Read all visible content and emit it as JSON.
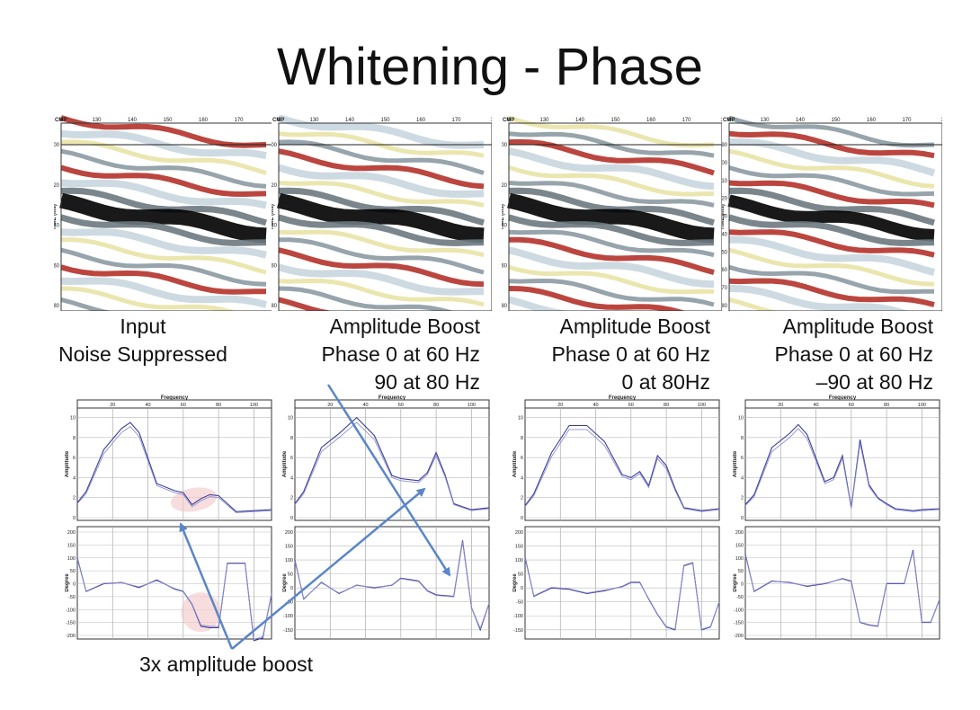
{
  "slide": {
    "title": "Whitening - Phase",
    "annotation": "3x amplitude boost"
  },
  "colors": {
    "trace": "#3a3d9a",
    "arrow": "#5b86c8",
    "highlight": "#f2c6c6",
    "seis_dark": "#000000",
    "seis_red": "#b4322a",
    "seis_light": "#c9d6df",
    "seis_yellow": "#e9e3a6"
  },
  "panels": [
    {
      "caption": [
        "Input",
        "Noise Suppressed"
      ],
      "seismic": {
        "cmp_label": "CMP",
        "time_label": "TIME (ms)",
        "cmp_ticks": [
          "0",
          "130",
          "140",
          "150",
          "160",
          "170",
          "1"
        ],
        "time_ticks": [
          "800",
          "820",
          "840",
          "860",
          "880"
        ]
      },
      "freq_label": "Frequency",
      "amp_label": "Amplitude",
      "phase_label": "Degree",
      "freq_ticks": [
        "20",
        "40",
        "60",
        "80",
        "100"
      ],
      "amp_ticks": [
        "10",
        "8",
        "6",
        "4",
        "2",
        "0"
      ],
      "phase_ticks": [
        "200",
        "150",
        "100",
        "50",
        "0",
        "-50",
        "-100",
        "-150",
        "-200"
      ]
    },
    {
      "caption": [
        "Amplitude  Boost",
        "Phase 0 at 60 Hz",
        "90 at 80 Hz"
      ],
      "seismic": {
        "cmp_label": "CMP",
        "time_label": "TIME (ms)",
        "cmp_ticks": [
          "0",
          "130",
          "140",
          "150",
          "160",
          "170",
          "1"
        ],
        "time_ticks": [
          "800",
          "820",
          "840",
          "860",
          "880"
        ]
      },
      "freq_label": "Frequency",
      "amp_label": "Amplitude",
      "phase_label": "Degree",
      "freq_ticks": [
        "20",
        "40",
        "60",
        "80",
        "100"
      ],
      "amp_ticks": [
        "10",
        "8",
        "6",
        "4",
        "2",
        "0"
      ],
      "phase_ticks": [
        "200",
        "150",
        "100",
        "50",
        "0",
        "-50",
        "-100",
        "-150"
      ]
    },
    {
      "caption": [
        "Amplitude Boost",
        "Phase 0 at 60 Hz",
        "0 at 80Hz"
      ],
      "seismic": {
        "cmp_label": "CMP",
        "time_label": "TIME (ms)",
        "cmp_ticks": [
          "0",
          "130",
          "140",
          "150",
          "160",
          "170",
          "1"
        ],
        "time_ticks": [
          "800",
          "820",
          "840",
          "860",
          "880"
        ]
      },
      "freq_label": "Frequency",
      "amp_label": "Amplitude",
      "phase_label": "Degree",
      "freq_ticks": [
        "20",
        "40",
        "60",
        "80",
        "100"
      ],
      "amp_ticks": [
        "10",
        "8",
        "6",
        "4",
        "2",
        "0"
      ],
      "phase_ticks": [
        "200",
        "150",
        "100",
        "50",
        "0",
        "-50",
        "-100",
        "-150"
      ]
    },
    {
      "caption": [
        "Amplitude Boost",
        "Phase 0 at 60 Hz",
        "–90 at 80 Hz"
      ],
      "seismic": {
        "cmp_label": "CMP",
        "time_label": "TIME (ms)",
        "cmp_ticks": [
          "0",
          "130",
          "140",
          "150",
          "160",
          "170",
          "1"
        ],
        "time_ticks": [
          "790",
          "800",
          "810",
          "820",
          "830",
          "840",
          "850",
          "860",
          "870",
          "880"
        ]
      },
      "freq_label": "Frequency",
      "amp_label": "Amplitude",
      "phase_label": "Degree",
      "freq_ticks": [
        "20",
        "40",
        "60",
        "80",
        "100"
      ],
      "amp_ticks": [
        "10",
        "8",
        "6",
        "4",
        "2",
        "0"
      ],
      "phase_ticks": [
        "200",
        "150",
        "100",
        "50",
        "0",
        "-50",
        "-100",
        "-150",
        "-200"
      ]
    }
  ],
  "chart_data": [
    {
      "type": "line",
      "panel": "Input / Noise Suppressed",
      "xlabel": "Frequency",
      "ylabel": "Amplitude",
      "xlim": [
        0,
        110
      ],
      "ylim": [
        0,
        10.5
      ],
      "x": [
        0,
        5,
        15,
        25,
        30,
        35,
        45,
        55,
        60,
        65,
        70,
        75,
        80,
        90,
        100,
        110
      ],
      "series": [
        {
          "values": [
            1.5,
            2.6,
            6.8,
            8.9,
            9.5,
            8.5,
            3.4,
            2.7,
            2.5,
            1.3,
            1.9,
            2.3,
            2.2,
            0.6,
            0.7,
            0.8
          ]
        },
        {
          "values": [
            1.4,
            2.4,
            6.4,
            8.5,
            9.1,
            8.1,
            3.2,
            2.5,
            2.3,
            1.1,
            1.7,
            2.1,
            2.0,
            0.5,
            0.6,
            0.7
          ]
        }
      ]
    },
    {
      "type": "line",
      "panel": "Input / Noise Suppressed",
      "xlabel": "Frequency",
      "ylabel": "Degree",
      "xlim": [
        0,
        110
      ],
      "ylim": [
        -200,
        200
      ],
      "x": [
        0,
        5,
        15,
        25,
        35,
        45,
        55,
        60,
        65,
        70,
        75,
        80,
        85,
        90,
        95,
        100,
        105,
        110
      ],
      "series": [
        {
          "values": [
            100,
            -30,
            0,
            5,
            -15,
            15,
            -20,
            -30,
            -80,
            -165,
            -170,
            -170,
            80,
            80,
            80,
            -220,
            -210,
            -40
          ]
        },
        {
          "values": [
            95,
            -28,
            2,
            4,
            -12,
            12,
            -18,
            -28,
            -78,
            -160,
            -165,
            -165,
            78,
            78,
            78,
            -215,
            -205,
            -40
          ]
        }
      ]
    },
    {
      "type": "line",
      "panel": "Phase 0 at 60 Hz, 90 at 80 Hz",
      "xlabel": "Frequency",
      "ylabel": "Amplitude",
      "xlim": [
        0,
        110
      ],
      "ylim": [
        0,
        10.5
      ],
      "x": [
        0,
        5,
        15,
        25,
        35,
        45,
        55,
        60,
        65,
        70,
        75,
        80,
        85,
        90,
        100,
        110
      ],
      "series": [
        {
          "values": [
            1.4,
            2.6,
            7.0,
            8.4,
            10.0,
            8.2,
            4.2,
            3.9,
            3.8,
            3.7,
            4.5,
            6.5,
            4.3,
            1.4,
            0.8,
            1.0
          ]
        },
        {
          "values": [
            1.3,
            2.4,
            6.6,
            8.0,
            9.5,
            7.8,
            4.0,
            3.7,
            3.6,
            3.5,
            4.3,
            6.2,
            4.1,
            1.3,
            0.7,
            0.9
          ]
        }
      ]
    },
    {
      "type": "line",
      "panel": "Phase 0 at 60 Hz, 90 at 80 Hz",
      "xlabel": "Frequency",
      "ylabel": "Degree",
      "xlim": [
        0,
        110
      ],
      "ylim": [
        -170,
        200
      ],
      "x": [
        0,
        5,
        15,
        25,
        35,
        45,
        55,
        60,
        65,
        70,
        75,
        80,
        90,
        95,
        100,
        105,
        110
      ],
      "series": [
        {
          "values": [
            100,
            -40,
            20,
            -20,
            10,
            0,
            10,
            35,
            30,
            25,
            -10,
            -25,
            -30,
            170,
            -70,
            -150,
            -55
          ]
        },
        {
          "values": [
            95,
            -38,
            18,
            -18,
            9,
            2,
            9,
            33,
            28,
            23,
            -12,
            -27,
            -32,
            165,
            -70,
            -145,
            -55
          ]
        }
      ]
    },
    {
      "type": "line",
      "panel": "Phase 0 at 60 Hz, 0 at 80Hz",
      "xlabel": "Frequency",
      "ylabel": "Amplitude",
      "xlim": [
        0,
        110
      ],
      "ylim": [
        0,
        10.5
      ],
      "x": [
        0,
        5,
        15,
        25,
        35,
        45,
        55,
        60,
        65,
        70,
        75,
        80,
        85,
        90,
        100,
        110
      ],
      "series": [
        {
          "values": [
            1.2,
            2.4,
            6.5,
            9.2,
            9.2,
            7.6,
            4.3,
            4.0,
            4.6,
            3.2,
            6.2,
            5.2,
            2.9,
            1.0,
            0.7,
            0.9
          ]
        },
        {
          "values": [
            1.1,
            2.2,
            6.1,
            8.8,
            8.8,
            7.2,
            4.1,
            3.8,
            4.4,
            3.0,
            5.9,
            4.9,
            2.7,
            0.9,
            0.6,
            0.8
          ]
        }
      ]
    },
    {
      "type": "line",
      "panel": "Phase 0 at 60 Hz, 0 at 80Hz",
      "xlabel": "Frequency",
      "ylabel": "Degree",
      "xlim": [
        0,
        110
      ],
      "ylim": [
        -170,
        200
      ],
      "x": [
        0,
        5,
        15,
        25,
        35,
        45,
        55,
        60,
        65,
        70,
        75,
        80,
        85,
        90,
        95,
        100,
        105,
        110
      ],
      "series": [
        {
          "values": [
            110,
            -30,
            0,
            -5,
            -20,
            -10,
            5,
            20,
            20,
            -40,
            -95,
            -140,
            -150,
            80,
            90,
            -150,
            -140,
            -50
          ]
        },
        {
          "values": [
            105,
            -28,
            2,
            -3,
            -18,
            -8,
            3,
            18,
            18,
            -38,
            -93,
            -138,
            -148,
            78,
            88,
            -148,
            -138,
            -50
          ]
        }
      ]
    },
    {
      "type": "line",
      "panel": "Phase 0 at 60 Hz, –90 at 80 Hz",
      "xlabel": "Frequency",
      "ylabel": "Amplitude",
      "xlim": [
        0,
        110
      ],
      "ylim": [
        0,
        10.5
      ],
      "x": [
        0,
        5,
        15,
        25,
        30,
        35,
        45,
        50,
        55,
        60,
        65,
        70,
        75,
        80,
        85,
        95,
        100,
        110
      ],
      "series": [
        {
          "values": [
            1.3,
            2.3,
            7.0,
            8.4,
            9.3,
            8.3,
            3.6,
            4.0,
            6.2,
            1.0,
            7.8,
            3.3,
            2.0,
            1.4,
            0.9,
            0.7,
            0.8,
            0.9
          ]
        },
        {
          "values": [
            1.2,
            2.1,
            6.6,
            8.0,
            8.9,
            7.9,
            3.4,
            3.8,
            5.9,
            0.9,
            7.4,
            3.1,
            1.9,
            1.3,
            0.8,
            0.6,
            0.7,
            0.8
          ]
        }
      ]
    },
    {
      "type": "line",
      "panel": "Phase 0 at 60 Hz, –90 at 80 Hz",
      "xlabel": "Frequency",
      "ylabel": "Degree",
      "xlim": [
        0,
        110
      ],
      "ylim": [
        -200,
        200
      ],
      "x": [
        0,
        5,
        15,
        25,
        35,
        45,
        55,
        60,
        65,
        70,
        75,
        80,
        85,
        90,
        95,
        100,
        105,
        110
      ],
      "series": [
        {
          "values": [
            115,
            -30,
            10,
            5,
            -10,
            0,
            20,
            10,
            -150,
            -160,
            -165,
            0,
            0,
            0,
            130,
            -150,
            -150,
            -60
          ]
        },
        {
          "values": [
            110,
            -28,
            12,
            3,
            -8,
            2,
            18,
            8,
            -148,
            -158,
            -163,
            2,
            2,
            2,
            125,
            -148,
            -148,
            -60
          ]
        }
      ]
    }
  ]
}
